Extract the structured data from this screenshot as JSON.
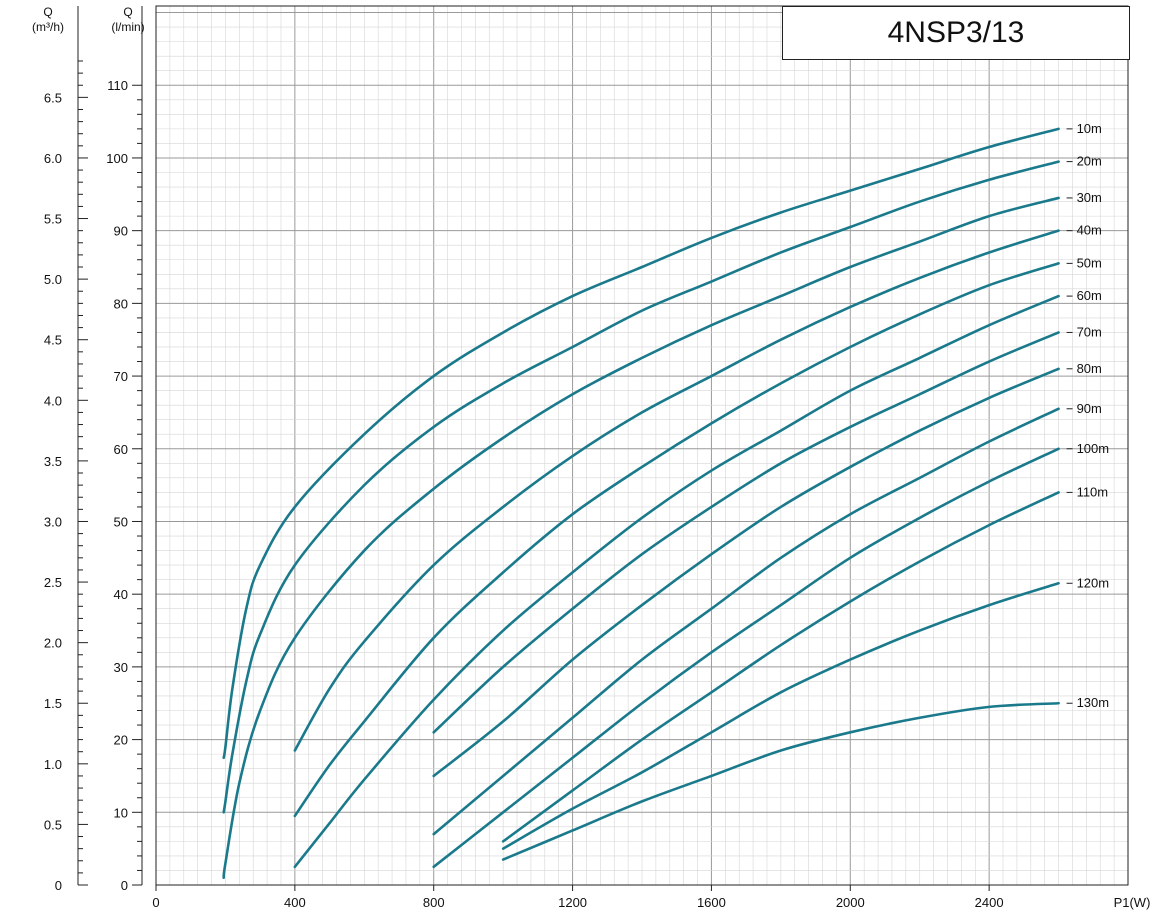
{
  "chart_data": {
    "type": "line",
    "title": "4NSP3/13",
    "xlabel": "P1(W)",
    "ylabel_left": "Q\n(m³/h)",
    "ylabel_right": "Q\n(l/min)",
    "left_axis": {
      "label_top": "Q",
      "label_bottom": "(m³/h)",
      "ticks": [
        "0",
        "0.5",
        "1.0",
        "1.5",
        "2.0",
        "2.5",
        "3.0",
        "3.5",
        "4.0",
        "4.5",
        "5.0",
        "5.5",
        "6.0",
        "6.5"
      ]
    },
    "right_axis": {
      "label_top": "Q",
      "label_bottom": "(l/min)",
      "ticks": [
        "0",
        "10",
        "20",
        "30",
        "40",
        "50",
        "60",
        "70",
        "80",
        "90",
        "100",
        "110"
      ]
    },
    "x_ticks": [
      "0",
      "400",
      "800",
      "1200",
      "1600",
      "2000",
      "2400",
      "P1(W)"
    ],
    "xlim": [
      0,
      2800
    ],
    "ylim": [
      0,
      110
    ],
    "grid": true,
    "series": [
      {
        "name": "10m",
        "x": [
          195,
          200,
          220,
          260,
          300,
          400,
          600,
          800,
          1000,
          1200,
          1400,
          1600,
          1800,
          2000,
          2200,
          2400,
          2600
        ],
        "y": [
          17.5,
          19,
          27,
          38,
          44,
          52,
          62,
          70,
          76,
          81,
          85,
          89,
          92.5,
          95.5,
          98.5,
          101.5,
          104
        ]
      },
      {
        "name": "20m",
        "x": [
          195,
          200,
          220,
          260,
          300,
          400,
          600,
          800,
          1000,
          1200,
          1400,
          1600,
          1800,
          2000,
          2200,
          2400,
          2600
        ],
        "y": [
          10,
          11.5,
          18,
          28,
          34.5,
          44,
          55,
          63,
          69,
          74,
          79,
          83,
          87,
          90.5,
          94,
          97,
          99.5
        ]
      },
      {
        "name": "30m",
        "x": [
          195,
          200,
          240,
          300,
          400,
          600,
          800,
          1000,
          1200,
          1400,
          1600,
          1800,
          2000,
          2200,
          2400,
          2600
        ],
        "y": [
          1,
          3,
          14,
          24,
          34,
          46,
          54.5,
          61.5,
          67.5,
          72.5,
          77,
          81,
          85,
          88.5,
          92,
          94.5
        ]
      },
      {
        "name": "40m",
        "x": [
          400,
          500,
          600,
          800,
          1000,
          1200,
          1400,
          1600,
          1800,
          2000,
          2200,
          2400,
          2600
        ],
        "y": [
          18.5,
          27,
          33.5,
          44,
          52,
          59,
          65,
          70,
          75,
          79.5,
          83.5,
          87,
          90
        ]
      },
      {
        "name": "50m",
        "x": [
          400,
          500,
          600,
          800,
          1000,
          1200,
          1400,
          1600,
          1800,
          2000,
          2200,
          2400,
          2600
        ],
        "y": [
          9.5,
          16.5,
          22.5,
          34,
          43,
          51,
          57.5,
          63.5,
          69,
          74,
          78.5,
          82.5,
          85.5
        ]
      },
      {
        "name": "60m",
        "x": [
          400,
          500,
          600,
          800,
          1000,
          1200,
          1400,
          1600,
          1800,
          2000,
          2200,
          2400,
          2600
        ],
        "y": [
          2.5,
          8.5,
          14.5,
          25.5,
          35,
          43,
          50.5,
          57,
          62.5,
          68,
          72.5,
          77,
          81
        ]
      },
      {
        "name": "70m",
        "x": [
          800,
          1000,
          1200,
          1400,
          1600,
          1800,
          2000,
          2200,
          2400,
          2600
        ],
        "y": [
          21,
          30,
          38,
          45.5,
          52,
          58,
          63,
          67.5,
          72,
          76
        ]
      },
      {
        "name": "80m",
        "x": [
          800,
          1000,
          1200,
          1400,
          1600,
          1800,
          2000,
          2200,
          2400,
          2600
        ],
        "y": [
          15,
          22.5,
          31,
          38.5,
          45.5,
          52,
          57.5,
          62.5,
          67,
          71
        ]
      },
      {
        "name": "90m",
        "x": [
          800,
          1000,
          1200,
          1400,
          1600,
          1800,
          2000,
          2200,
          2400,
          2600
        ],
        "y": [
          7,
          15,
          23,
          31,
          38,
          45,
          51,
          56,
          61,
          65.5
        ]
      },
      {
        "name": "100m",
        "x": [
          800,
          1000,
          1200,
          1400,
          1600,
          1800,
          2000,
          2200,
          2400,
          2600
        ],
        "y": [
          2.5,
          10,
          17.5,
          25,
          32,
          38.5,
          45,
          50.5,
          55.5,
          60
        ]
      },
      {
        "name": "110m",
        "x": [
          1000,
          1200,
          1400,
          1600,
          1800,
          2000,
          2200,
          2400,
          2600
        ],
        "y": [
          6,
          13,
          20,
          26.5,
          33,
          39,
          44.5,
          49.5,
          54
        ]
      },
      {
        "name": "120m",
        "x": [
          1000,
          1200,
          1400,
          1600,
          1800,
          2000,
          2200,
          2400,
          2600
        ],
        "y": [
          5,
          10.5,
          15.5,
          21,
          26.5,
          31,
          35,
          38.5,
          41.5
        ]
      },
      {
        "name": "130m",
        "x": [
          1000,
          1200,
          1400,
          1600,
          1800,
          2000,
          2200,
          2400,
          2600
        ],
        "y": [
          3.5,
          7.5,
          11.5,
          15,
          18.5,
          21,
          23,
          24.5,
          25
        ]
      }
    ],
    "colors": {
      "curve": "#1a7a8c",
      "grid": "#c8c8c8",
      "axis": "#222222"
    }
  }
}
